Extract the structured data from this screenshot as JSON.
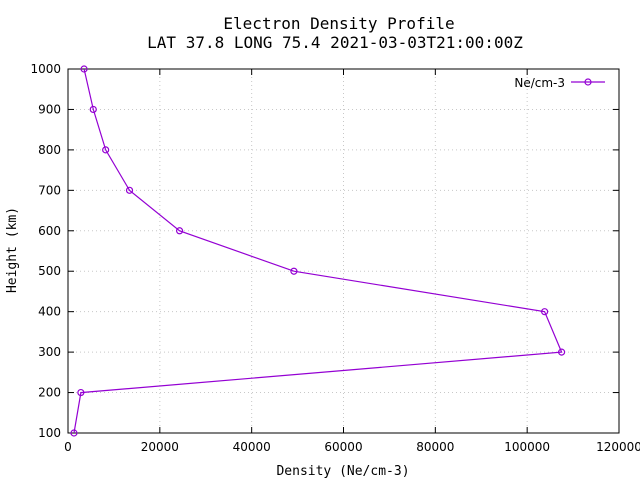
{
  "chart_data": {
    "type": "line",
    "title": "Electron Density Profile",
    "subtitle": "LAT 37.8 LONG 75.4 2021-03-03T21:00:00Z",
    "xlabel": "Density (Ne/cm-3)",
    "ylabel": "Height (km)",
    "xlim": [
      0,
      120000
    ],
    "ylim": [
      100,
      1000
    ],
    "xticks": [
      0,
      20000,
      40000,
      60000,
      80000,
      100000,
      120000
    ],
    "yticks": [
      100,
      200,
      300,
      400,
      500,
      600,
      700,
      800,
      900,
      1000
    ],
    "grid": true,
    "legend_position": "top-right",
    "series": [
      {
        "name": "Ne/cm-3",
        "color": "#9400d3",
        "marker": "open-circle",
        "points": [
          {
            "x": 1300,
            "y": 100
          },
          {
            "x": 2800,
            "y": 200
          },
          {
            "x": 107500,
            "y": 300
          },
          {
            "x": 103800,
            "y": 400
          },
          {
            "x": 49200,
            "y": 500
          },
          {
            "x": 24300,
            "y": 600
          },
          {
            "x": 13400,
            "y": 700
          },
          {
            "x": 8200,
            "y": 800
          },
          {
            "x": 5500,
            "y": 900
          },
          {
            "x": 3500,
            "y": 1000
          }
        ]
      }
    ]
  }
}
